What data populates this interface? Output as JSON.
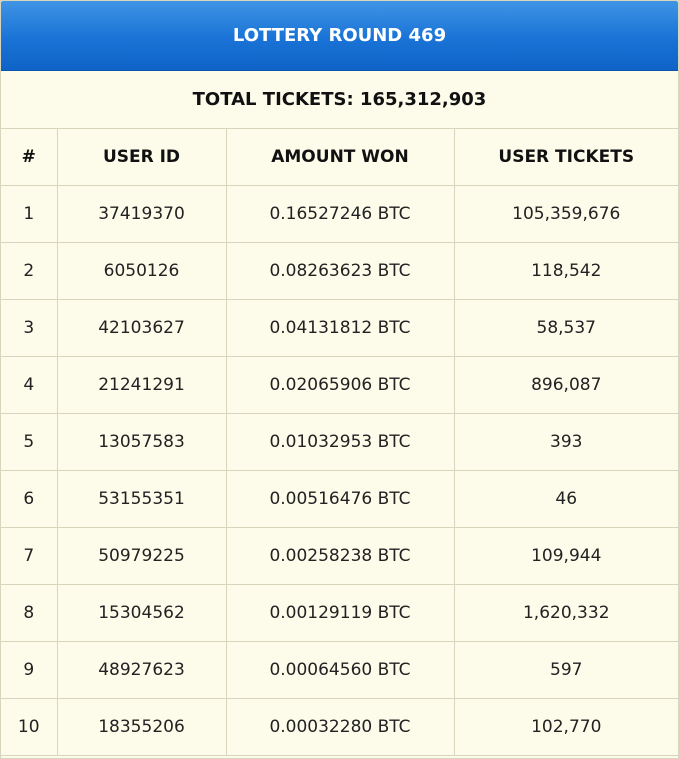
{
  "header": {
    "title": "LOTTERY ROUND 469"
  },
  "summary": {
    "total_tickets": "TOTAL TICKETS: 165,312,903"
  },
  "table": {
    "columns": [
      "#",
      "USER ID",
      "AMOUNT WON",
      "USER TICKETS"
    ],
    "rows": [
      {
        "rank": "1",
        "user_id": "37419370",
        "amount": "0.16527246 BTC",
        "tickets": "105,359,676"
      },
      {
        "rank": "2",
        "user_id": "6050126",
        "amount": "0.08263623 BTC",
        "tickets": "118,542"
      },
      {
        "rank": "3",
        "user_id": "42103627",
        "amount": "0.04131812 BTC",
        "tickets": "58,537"
      },
      {
        "rank": "4",
        "user_id": "21241291",
        "amount": "0.02065906 BTC",
        "tickets": "896,087"
      },
      {
        "rank": "5",
        "user_id": "13057583",
        "amount": "0.01032953 BTC",
        "tickets": "393"
      },
      {
        "rank": "6",
        "user_id": "53155351",
        "amount": "0.00516476 BTC",
        "tickets": "46"
      },
      {
        "rank": "7",
        "user_id": "50979225",
        "amount": "0.00258238 BTC",
        "tickets": "109,944"
      },
      {
        "rank": "8",
        "user_id": "15304562",
        "amount": "0.00129119 BTC",
        "tickets": "1,620,332"
      },
      {
        "rank": "9",
        "user_id": "48927623",
        "amount": "0.00064560 BTC",
        "tickets": "597"
      },
      {
        "rank": "10",
        "user_id": "18355206",
        "amount": "0.00032280 BTC",
        "tickets": "102,770"
      }
    ]
  },
  "colors": {
    "header_blue": "#1a73d6",
    "panel_bg": "#fdfbea",
    "grid": "#d9d5bd"
  }
}
